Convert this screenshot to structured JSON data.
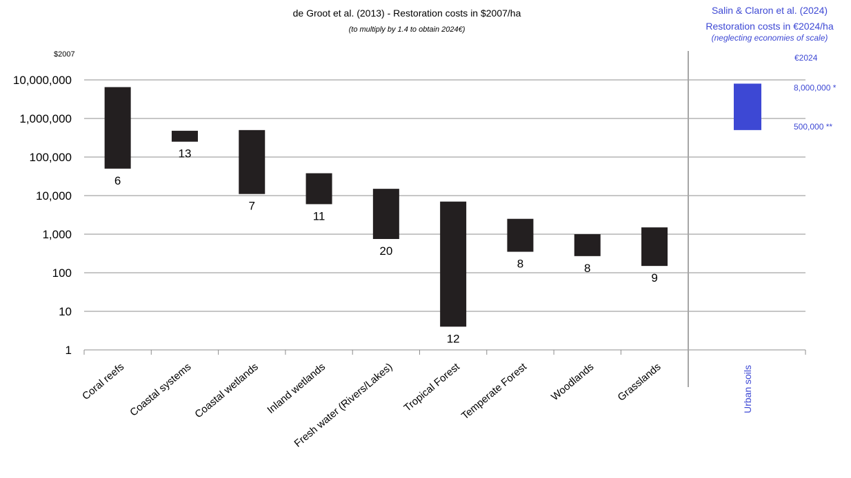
{
  "chart_data": {
    "type": "bar",
    "title": "de Groot et al. (2013) - Restoration costs in $2007/ha",
    "subtitle": "(to multiply by 1.4 to obtain 2024€)",
    "yunit": "$2007",
    "yscale": "log",
    "ylim": [
      1,
      10000000
    ],
    "yticks": [
      "1",
      "10",
      "100",
      "1,000",
      "10,000",
      "100,000",
      "1,000,000",
      "10,000,000"
    ],
    "categories": [
      "Coral reefs",
      "Coastal systems",
      "Coastal wetlands",
      "Inland wetlands",
      "Fresh water (Rivers/Lakes)",
      "Tropical Forest",
      "Temperate Forest",
      "Woodlands",
      "Grasslands"
    ],
    "series": [
      {
        "low": [
          50000,
          250000,
          11000,
          6000,
          750,
          4,
          350,
          270,
          150
        ],
        "high": [
          6500000,
          480000,
          500000,
          38000,
          15000,
          7000,
          2500,
          1000,
          1500
        ],
        "labels": [
          "6",
          "13",
          "7",
          "11",
          "20",
          "12",
          "8",
          "8",
          "9"
        ]
      }
    ],
    "grid": true,
    "secondary": {
      "title_line1": "Salin & Claron et al. (2024)",
      "title_line2": "Restoration costs in €2024/ha",
      "title_line3": "(neglecting economies of scale)",
      "unit": "€2024",
      "category": "Urban soils",
      "low": 500000,
      "high": 8000000,
      "label_high": "8,000,000 *",
      "label_low": "500,000 **",
      "color": "#3d48d4"
    },
    "bar_color": "#231f20"
  }
}
